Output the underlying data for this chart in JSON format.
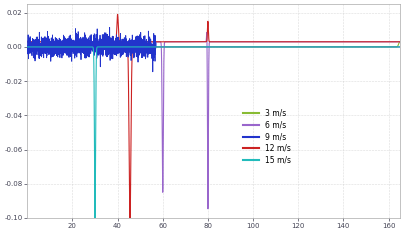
{
  "title": "",
  "xlabel": "",
  "ylabel": "",
  "xlim": [
    0,
    165
  ],
  "ylim": [
    -0.1,
    0.025
  ],
  "yticks": [
    -0.1,
    -0.08,
    -0.06,
    -0.04,
    -0.02,
    0.0,
    0.02
  ],
  "xticks": [
    20,
    40,
    60,
    80,
    100,
    120,
    140,
    160
  ],
  "bg_color": "#ffffff",
  "grid_color": "#cccccc",
  "legend": [
    {
      "label": "3 m/s",
      "color": "#88bb33"
    },
    {
      "label": "6 m/s",
      "color": "#9966cc"
    },
    {
      "label": "9 m/s",
      "color": "#2233cc"
    },
    {
      "label": "12 m/s",
      "color": "#cc2222"
    },
    {
      "label": "15 m/s",
      "color": "#22bbbb"
    }
  ],
  "seed": 42,
  "zero_line_y": 0.0
}
